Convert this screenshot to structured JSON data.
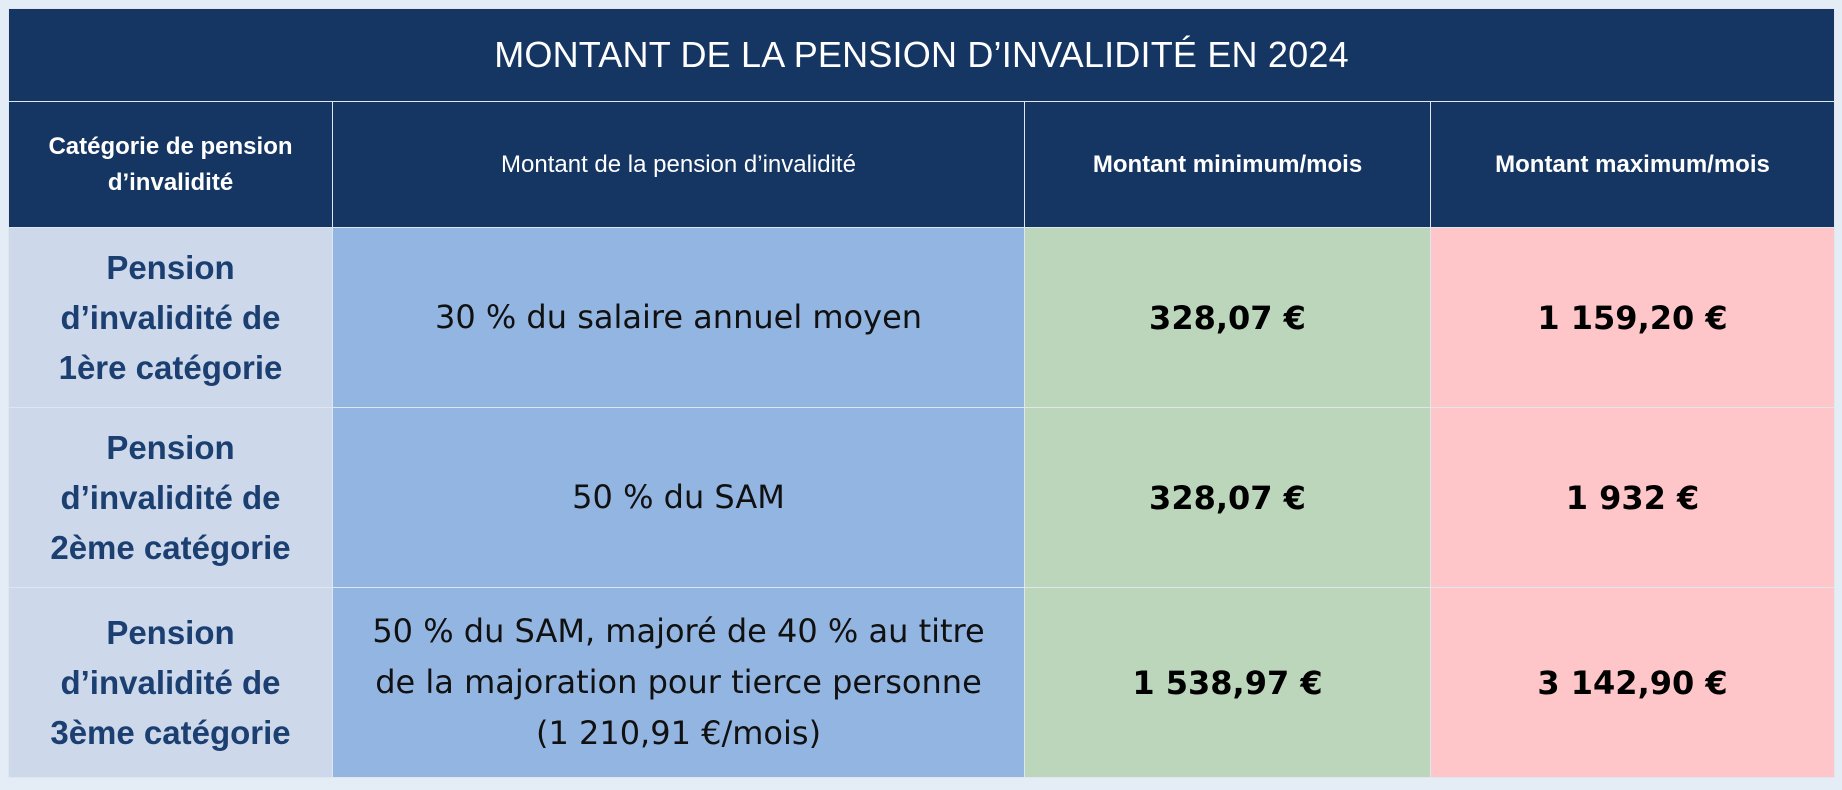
{
  "title": "MONTANT DE LA PENSION D’INVALIDITÉ EN 2024",
  "headers": {
    "category": [
      "Catégorie de pension",
      "d’invalidité"
    ],
    "amount": "Montant de la pension d’invalidité",
    "min": "Montant minimum/mois",
    "max": "Montant maximum/mois"
  },
  "rows": [
    {
      "category": [
        "Pension",
        "d’invalidité de",
        "1ère catégorie"
      ],
      "amount": [
        "30 % du salaire annuel moyen"
      ],
      "min": "328,07 €",
      "max": "1 159,20 €"
    },
    {
      "category": [
        "Pension",
        "d’invalidité de",
        "2ème catégorie"
      ],
      "amount": [
        "50 % du SAM"
      ],
      "min": "328,07 €",
      "max": "1 932 €"
    },
    {
      "category": [
        "Pension",
        "d’invalidité de",
        "3ème catégorie"
      ],
      "amount": [
        "50 % du SAM, majoré de 40 % au titre",
        "de la majoration pour tierce personne",
        "(1 210,91 €/mois)"
      ],
      "min": "1 538,97 €",
      "max": "3 142,90 €"
    }
  ],
  "colors": {
    "header_bg": "#153663",
    "category_bg": "#cdd8ea",
    "category_text": "#1c3f71",
    "amount_bg": "#93b5e2",
    "min_bg": "#bbd6bb",
    "max_bg": "#fec6c8",
    "page_bg": "#e4ecf6"
  }
}
